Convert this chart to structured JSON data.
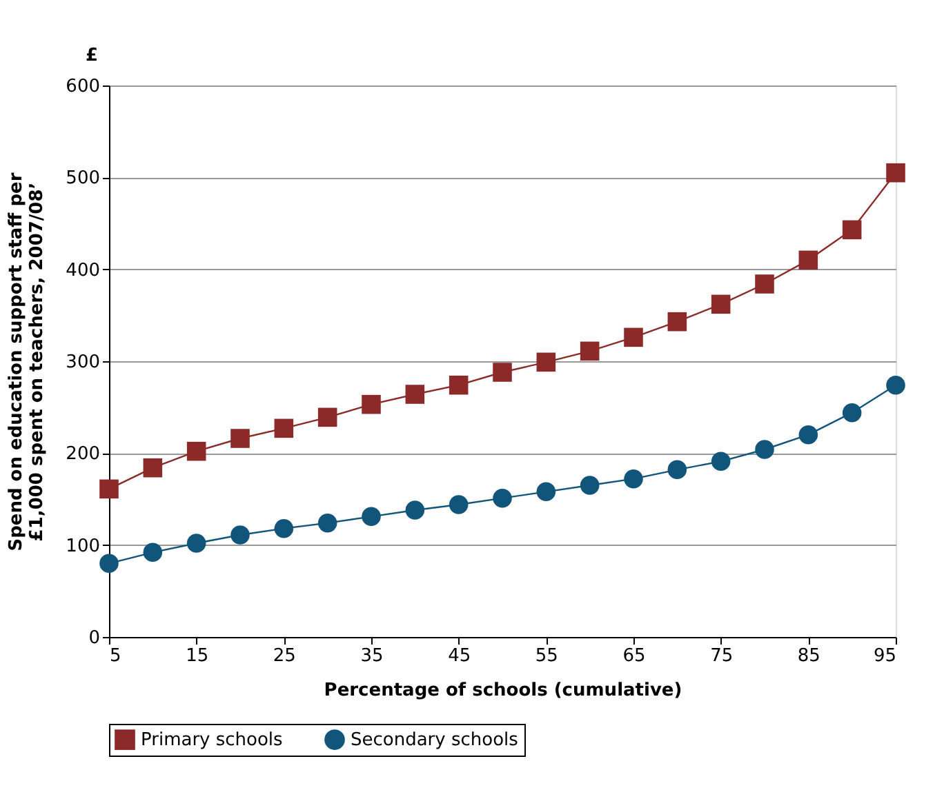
{
  "chart_data": {
    "type": "line",
    "xlabel": "Percentage of schools (cumulative)",
    "ylabel": "Spend on education support staff per £1,000 spent on teachers, 2007/08’",
    "annotations": [
      "£"
    ],
    "x": [
      5,
      10,
      15,
      20,
      25,
      30,
      35,
      40,
      45,
      50,
      55,
      60,
      65,
      70,
      75,
      80,
      85,
      90,
      95
    ],
    "series": [
      {
        "name": "Primary schools",
        "color": "#8c2a2a",
        "marker": "square",
        "values": [
          161,
          184,
          202,
          216,
          227,
          239,
          253,
          264,
          274,
          288,
          299,
          311,
          326,
          343,
          362,
          384,
          410,
          443,
          505
        ]
      },
      {
        "name": "Secondary schools",
        "color": "#11557a",
        "marker": "circle",
        "values": [
          80,
          92,
          102,
          111,
          118,
          124,
          131,
          138,
          144,
          151,
          158,
          165,
          172,
          182,
          191,
          204,
          220,
          244,
          274
        ]
      }
    ],
    "xlim": [
      5,
      95
    ],
    "xticks": [
      5,
      15,
      25,
      35,
      45,
      55,
      65,
      75,
      85,
      95
    ],
    "ylim": [
      0,
      600
    ],
    "yticks": [
      0,
      100,
      200,
      300,
      400,
      500,
      600
    ],
    "grid": "y",
    "legend": "bottom",
    "line_style": "solid"
  }
}
